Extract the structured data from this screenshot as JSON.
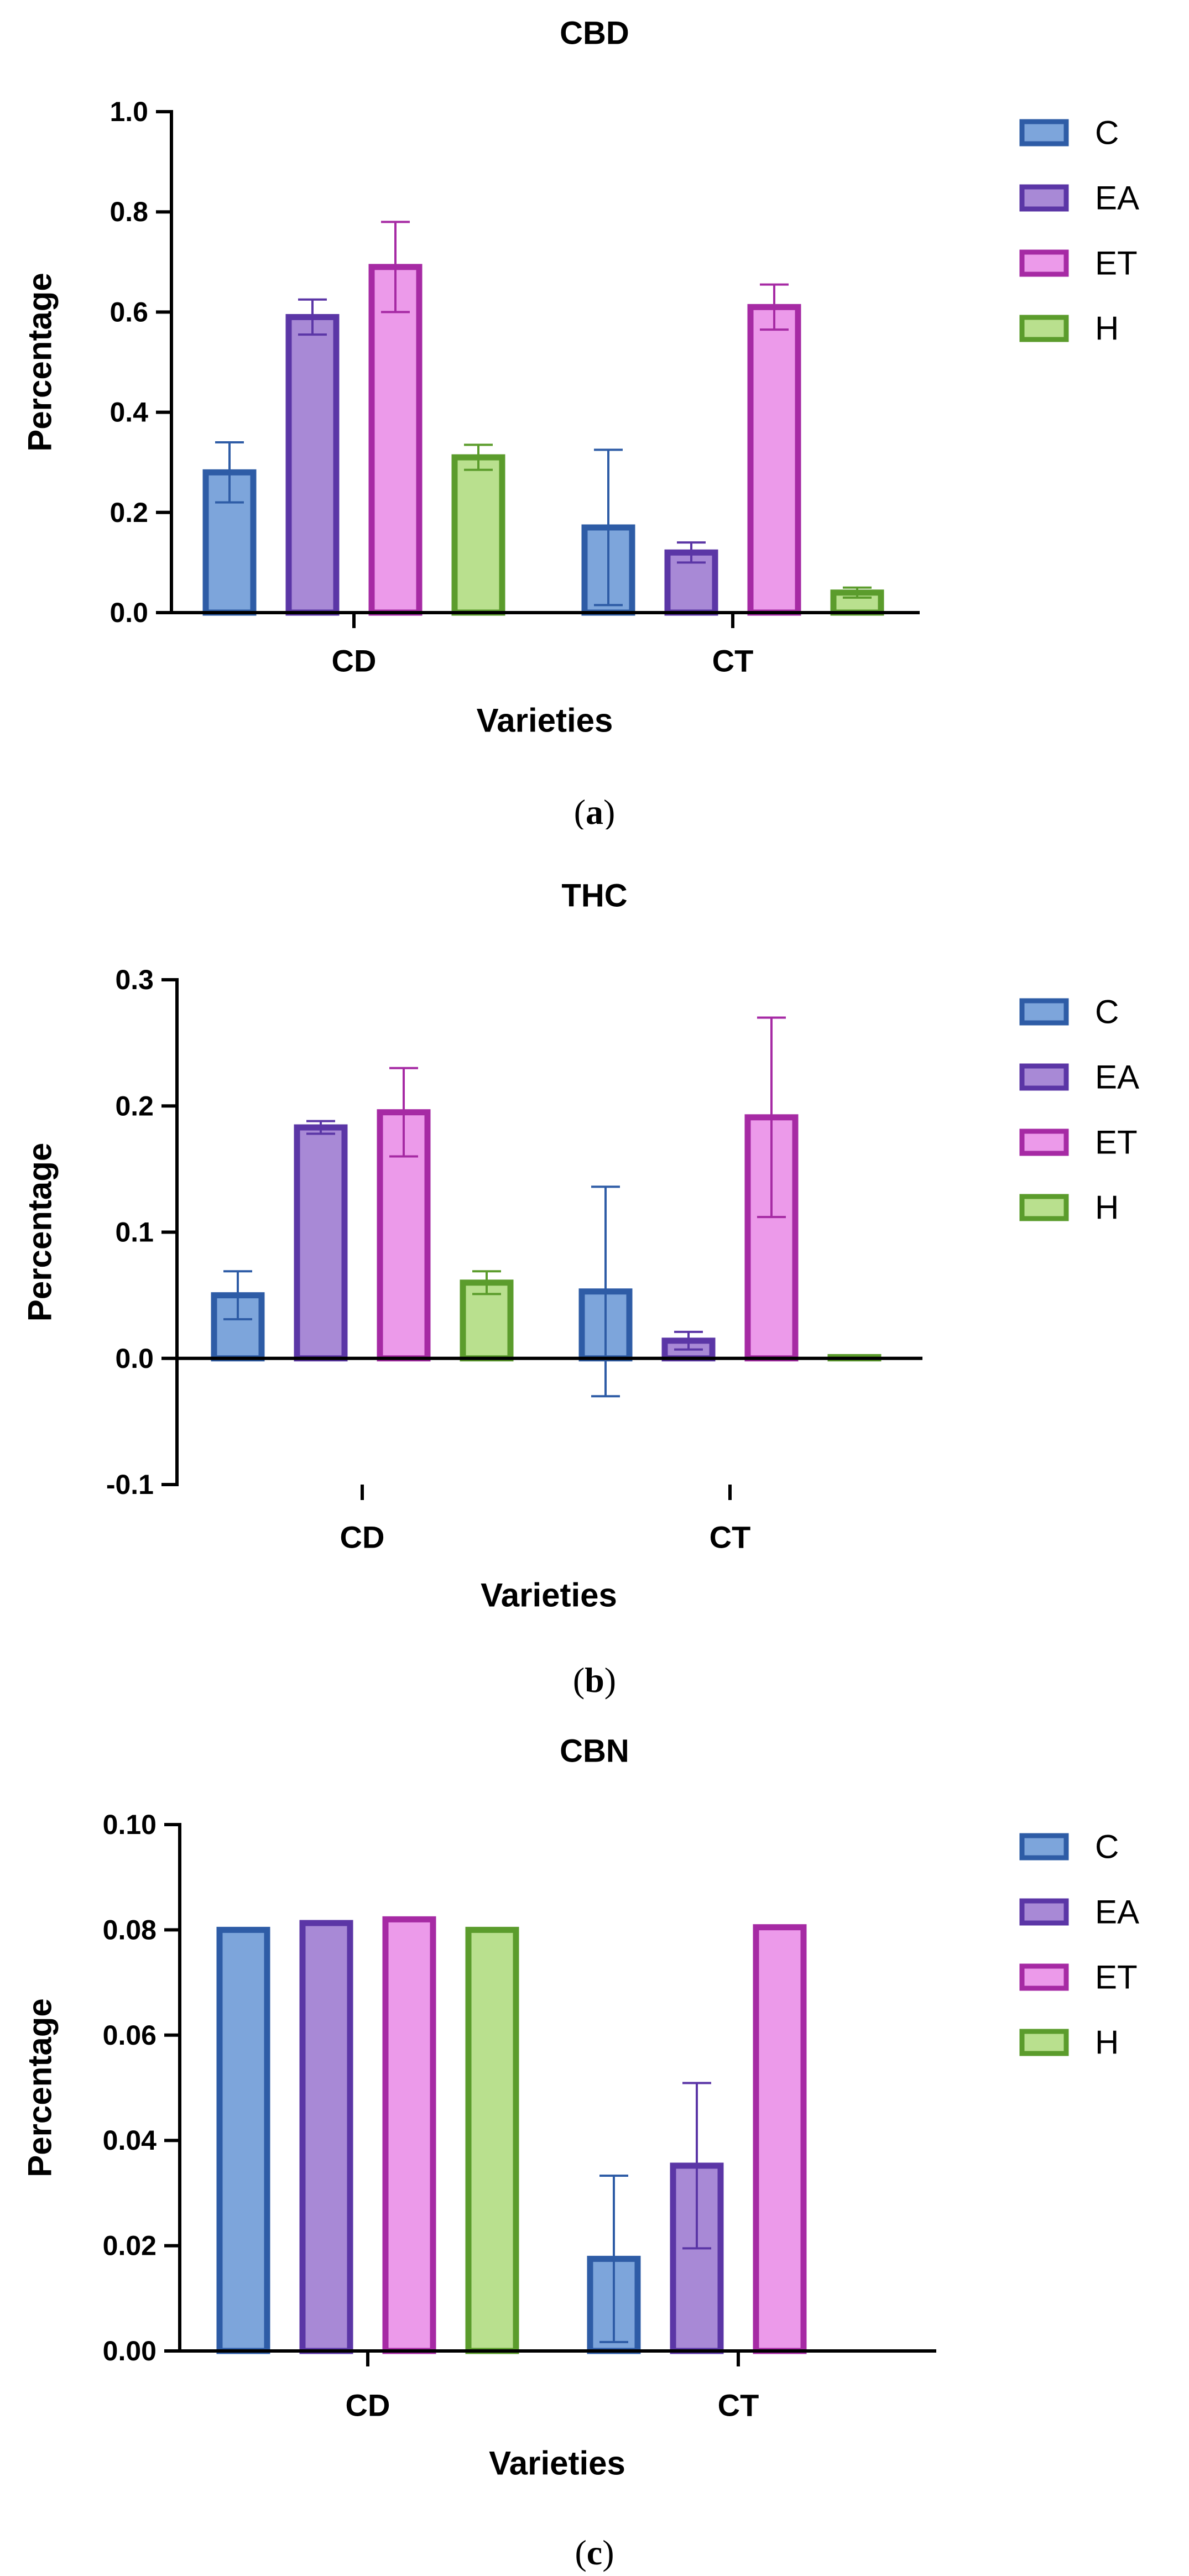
{
  "chart_data": [
    {
      "type": "bar",
      "panel": "a",
      "title": "CBD",
      "xlabel": "Varieties",
      "ylabel": "Percentage",
      "categories": [
        "CD",
        "CT"
      ],
      "ylim": [
        0,
        1.0
      ],
      "yticks": [
        0.0,
        0.2,
        0.4,
        0.6,
        0.8,
        1.0
      ],
      "ytick_decimals": 1,
      "legend_position": "right",
      "series": [
        {
          "name": "C",
          "fill": "#7da5db",
          "stroke": "#2e5ca6",
          "values": [
            0.28,
            0.17
          ],
          "errors": [
            0.06,
            0.155
          ]
        },
        {
          "name": "EA",
          "fill": "#a889d6",
          "stroke": "#5b36a6",
          "values": [
            0.59,
            0.12
          ],
          "errors": [
            0.035,
            0.02
          ]
        },
        {
          "name": "ET",
          "fill": "#ec9aea",
          "stroke": "#a62aa4",
          "values": [
            0.69,
            0.61
          ],
          "errors": [
            0.09,
            0.045
          ]
        },
        {
          "name": "H",
          "fill": "#b9e08e",
          "stroke": "#5b9c2c",
          "values": [
            0.31,
            0.04
          ],
          "errors": [
            0.025,
            0.01
          ]
        }
      ],
      "caption": "a"
    },
    {
      "type": "bar",
      "panel": "b",
      "title": "THC",
      "xlabel": "Varieties",
      "ylabel": "Percentage",
      "categories": [
        "CD",
        "CT"
      ],
      "ylim": [
        -0.1,
        0.3
      ],
      "yticks": [
        -0.1,
        0.0,
        0.1,
        0.2,
        0.3
      ],
      "ytick_decimals": 1,
      "legend_position": "right",
      "series": [
        {
          "name": "C",
          "fill": "#7da5db",
          "stroke": "#2e5ca6",
          "values": [
            0.05,
            0.053
          ],
          "errors": [
            0.019,
            0.083
          ]
        },
        {
          "name": "EA",
          "fill": "#a889d6",
          "stroke": "#5b36a6",
          "values": [
            0.183,
            0.014
          ],
          "errors": [
            0.005,
            0.007
          ]
        },
        {
          "name": "ET",
          "fill": "#ec9aea",
          "stroke": "#a62aa4",
          "values": [
            0.195,
            0.191
          ],
          "errors": [
            0.035,
            0.079
          ]
        },
        {
          "name": "H",
          "fill": "#b9e08e",
          "stroke": "#5b9c2c",
          "values": [
            0.06,
            0.001
          ],
          "errors": [
            0.009,
            0.001
          ]
        }
      ],
      "caption": "b"
    },
    {
      "type": "bar",
      "panel": "c",
      "title": "CBN",
      "xlabel": "Varieties",
      "ylabel": "Percentage",
      "categories": [
        "CD",
        "CT"
      ],
      "ylim": [
        0,
        0.1
      ],
      "yticks": [
        0.0,
        0.02,
        0.04,
        0.06,
        0.08,
        0.1
      ],
      "ytick_decimals": 2,
      "legend_position": "right",
      "series": [
        {
          "name": "C",
          "fill": "#7da5db",
          "stroke": "#2e5ca6",
          "values": [
            0.08,
            0.0175
          ],
          "errors": [
            0.0003,
            0.0158
          ]
        },
        {
          "name": "EA",
          "fill": "#a889d6",
          "stroke": "#5b36a6",
          "values": [
            0.0813,
            0.0352
          ],
          "errors": [
            0.0003,
            0.0157
          ]
        },
        {
          "name": "ET",
          "fill": "#ec9aea",
          "stroke": "#a62aa4",
          "values": [
            0.082,
            0.0805
          ],
          "errors": [
            0.0003,
            0.0003
          ]
        },
        {
          "name": "H",
          "fill": "#b9e08e",
          "stroke": "#5b9c2c",
          "values": [
            0.08,
            null
          ],
          "errors": [
            0.0003,
            null
          ]
        }
      ],
      "caption": "c"
    }
  ]
}
